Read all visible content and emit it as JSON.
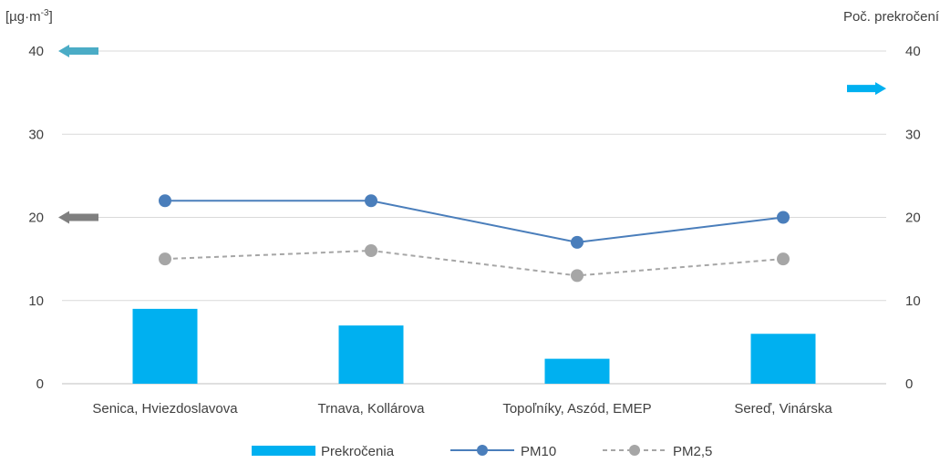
{
  "chart_data": {
    "type": "bar+line",
    "categories": [
      "Senica, Hviezdoslavova",
      "Trnava, Kollárova",
      "Topoľníky, Aszód, EMEP",
      "Sereď, Vinárska"
    ],
    "y_left": {
      "label_prefix": "[µg·m",
      "label_sup": "-3",
      "label_suffix": "]",
      "ylim": [
        0,
        40
      ],
      "ticks": [
        0,
        10,
        20,
        30,
        40
      ]
    },
    "y_right": {
      "label": "Poč. prekročení",
      "ylim": [
        0,
        40
      ],
      "ticks": [
        0,
        10,
        20,
        30,
        40
      ]
    },
    "series": [
      {
        "name": "Prekročenia",
        "type": "bar",
        "axis": "right",
        "color": "#00b0f0",
        "values": [
          9,
          7,
          3,
          6
        ]
      },
      {
        "name": "PM10",
        "type": "line",
        "axis": "left",
        "color": "#4a7ebb",
        "marker": "circle",
        "values": [
          22,
          22,
          17,
          20
        ]
      },
      {
        "name": "PM2,5",
        "type": "line",
        "axis": "left",
        "color": "#a6a6a6",
        "marker": "circle",
        "dash": "dashed",
        "values": [
          15,
          16,
          13,
          15
        ]
      }
    ],
    "annotations": [
      {
        "name": "left-axis-arrow-cyan",
        "direction": "left",
        "value": 40,
        "color": "#4bacc6"
      },
      {
        "name": "left-axis-arrow-gray",
        "direction": "left",
        "value": 20,
        "color": "#7f7f7f"
      },
      {
        "name": "right-axis-arrow-cyan",
        "direction": "right",
        "value": 35.5,
        "color": "#00b0f0"
      }
    ],
    "grid": true,
    "legend": "bottom"
  }
}
